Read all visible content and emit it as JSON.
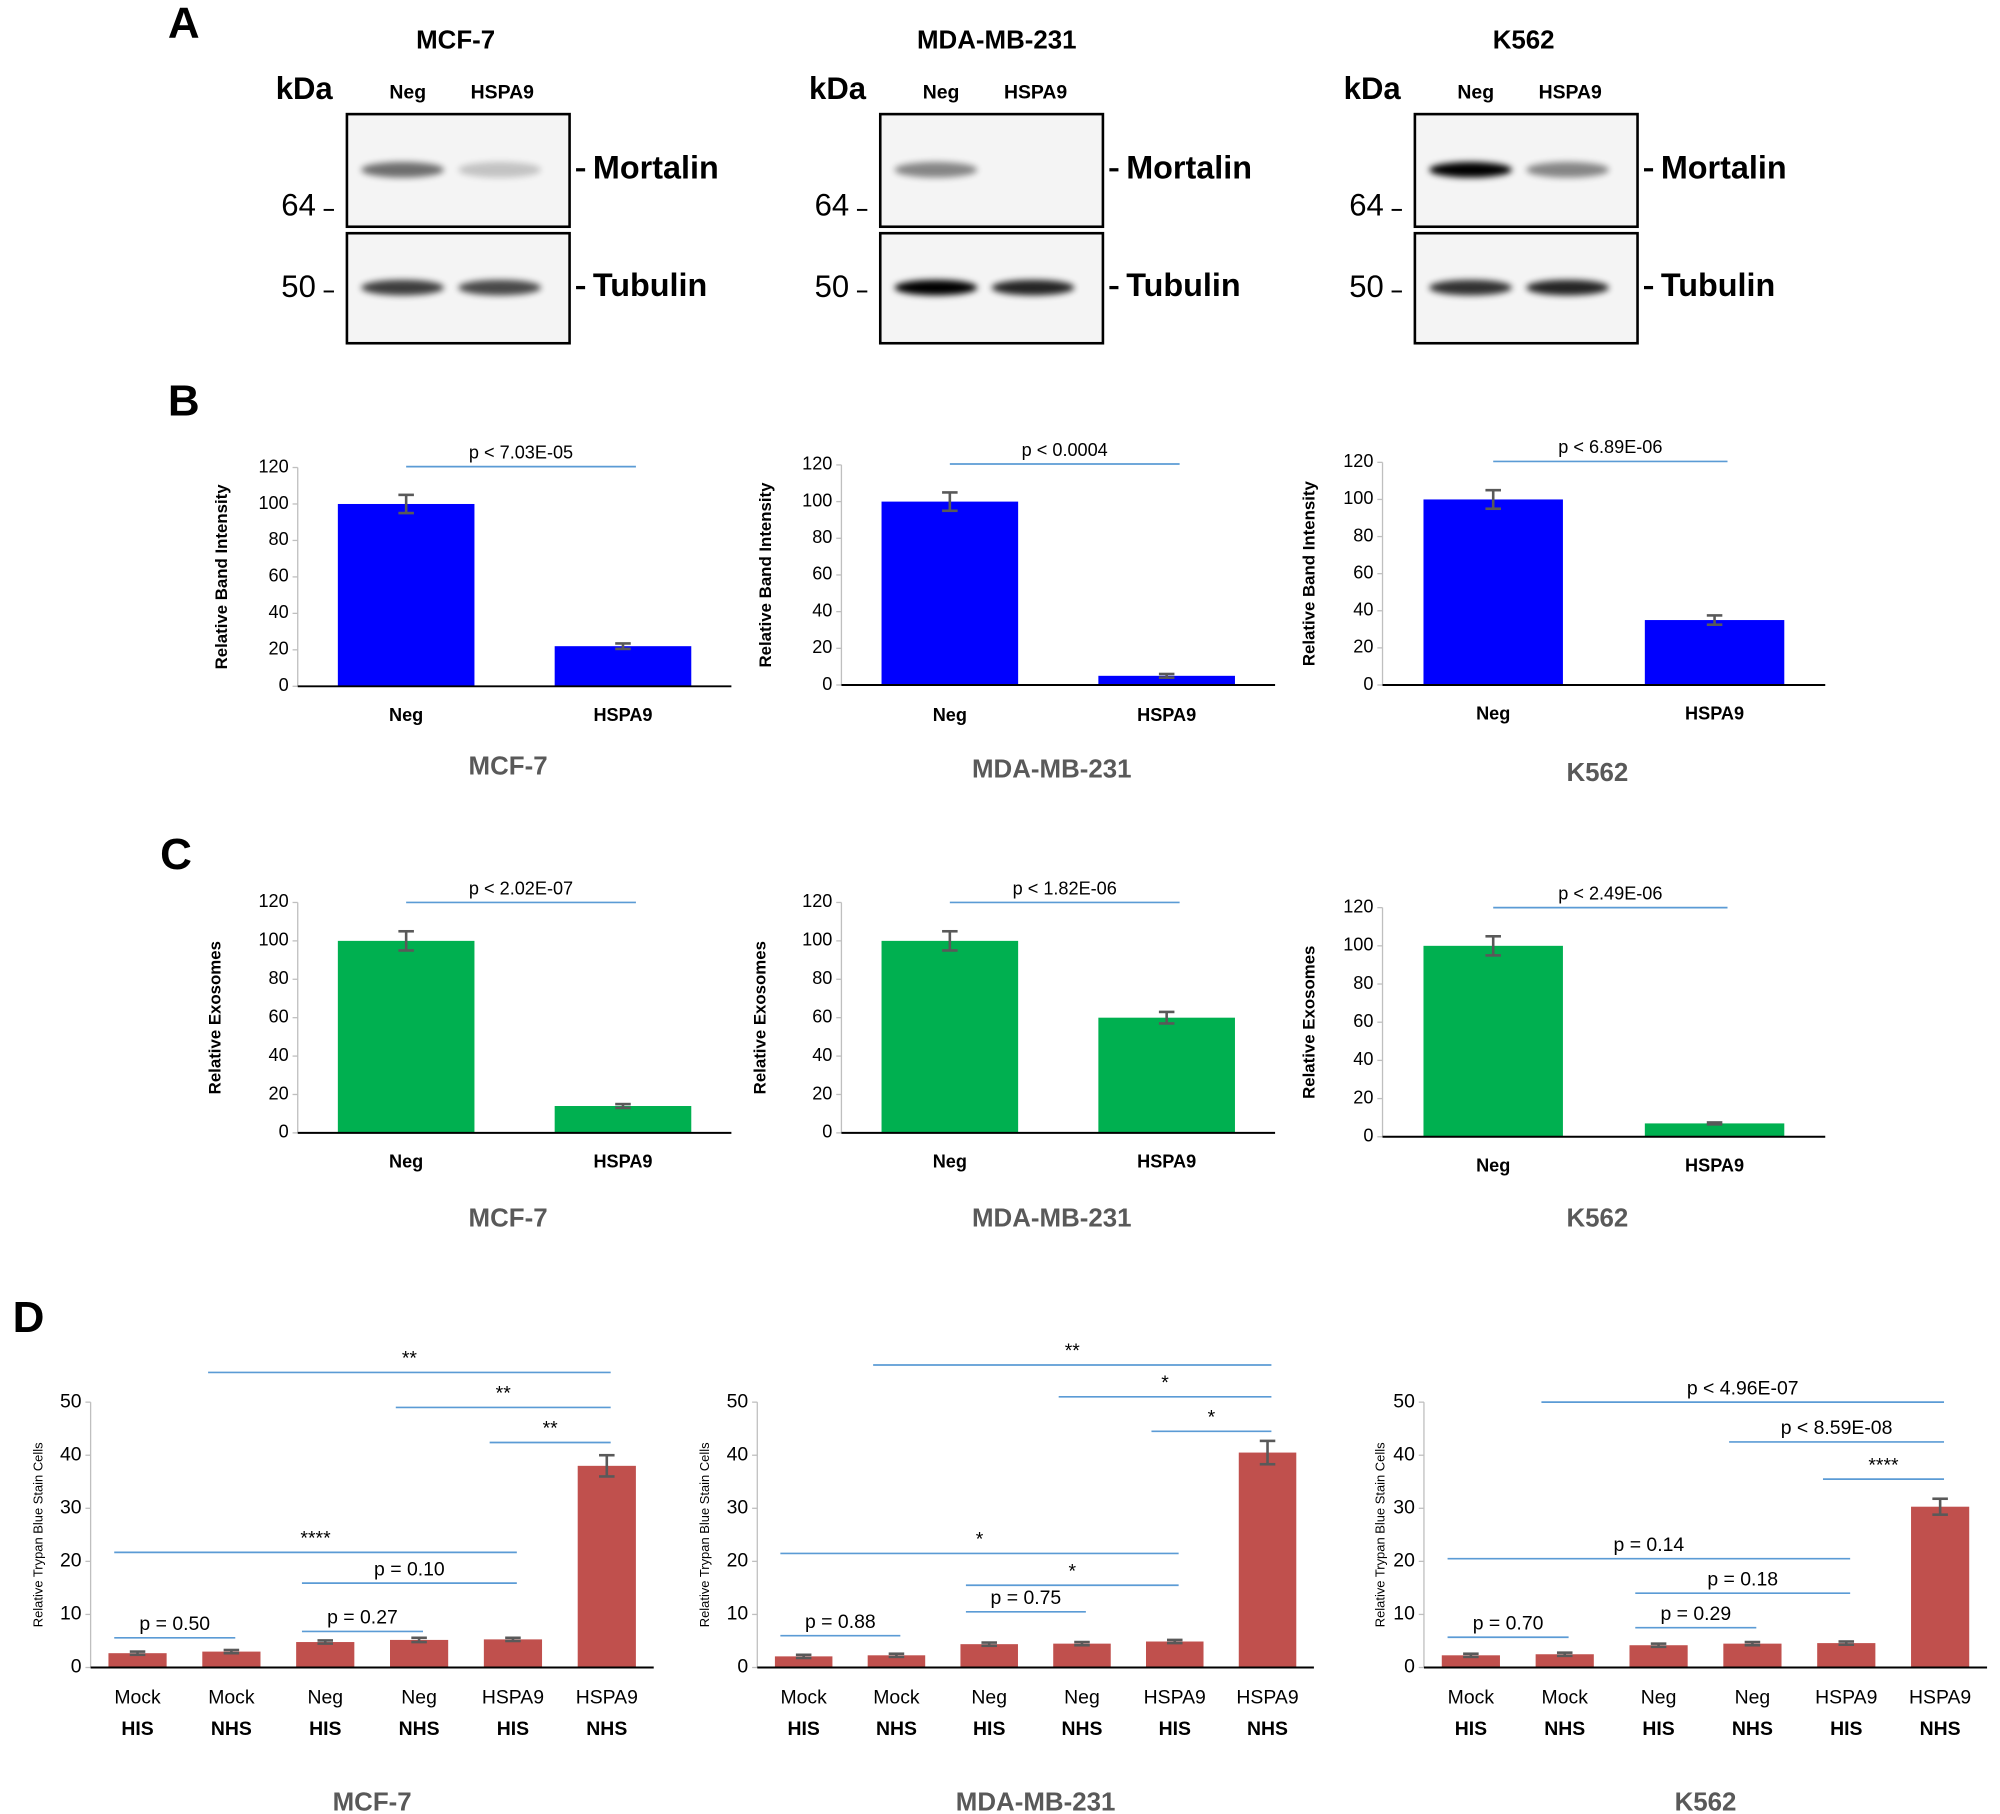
{
  "panel_labels": [
    "A",
    "B",
    "C",
    "D"
  ],
  "blots": [
    {
      "title": "MCF-7",
      "unit": "kDa",
      "lanes": [
        "Neg",
        "HSPA9"
      ],
      "markers": [
        64,
        50
      ],
      "proteins": [
        "Mortalin",
        "Tubulin"
      ]
    },
    {
      "title": "MDA-MB-231",
      "unit": "kDa",
      "lanes": [
        "Neg",
        "HSPA9"
      ],
      "markers": [
        64,
        50
      ],
      "proteins": [
        "Mortalin",
        "Tubulin"
      ]
    },
    {
      "title": "K562",
      "unit": "kDa",
      "lanes": [
        "Neg",
        "HSPA9"
      ],
      "markers": [
        64,
        50
      ],
      "proteins": [
        "Mortalin",
        "Tubulin"
      ]
    }
  ],
  "chart_data": [
    {
      "type": "bar",
      "title": "MCF-7",
      "ylabel": "Relative Band Intensity",
      "categories": [
        "Neg",
        "HSPA9"
      ],
      "values": [
        100,
        22
      ],
      "errors": [
        5,
        1.5
      ],
      "color": "#0000ff",
      "ylim": [
        0,
        120
      ],
      "yticks": [
        0,
        20,
        40,
        60,
        80,
        100,
        120
      ],
      "annotations": [
        "p < 7.03E-05"
      ]
    },
    {
      "type": "bar",
      "title": "MDA-MB-231",
      "ylabel": "Relative Band Intensity",
      "categories": [
        "Neg",
        "HSPA9"
      ],
      "values": [
        100,
        5
      ],
      "errors": [
        5,
        1
      ],
      "color": "#0000ff",
      "ylim": [
        0,
        120
      ],
      "yticks": [
        0,
        20,
        40,
        60,
        80,
        100,
        120
      ],
      "annotations": [
        "p < 0.0004"
      ]
    },
    {
      "type": "bar",
      "title": "K562",
      "ylabel": "Relative Band Intensity",
      "categories": [
        "Neg",
        "HSPA9"
      ],
      "values": [
        100,
        35
      ],
      "errors": [
        5,
        2.5
      ],
      "color": "#0000ff",
      "ylim": [
        0,
        120
      ],
      "yticks": [
        0,
        20,
        40,
        60,
        80,
        100,
        120
      ],
      "annotations": [
        "p < 6.89E-06"
      ]
    },
    {
      "type": "bar",
      "title": "MCF-7",
      "ylabel": "Relative Exosomes",
      "categories": [
        "Neg",
        "HSPA9"
      ],
      "values": [
        100,
        14
      ],
      "errors": [
        5,
        1
      ],
      "color": "#00b050",
      "ylim": [
        0,
        120
      ],
      "yticks": [
        0,
        20,
        40,
        60,
        80,
        100,
        120
      ],
      "annotations": [
        "p < 2.02E-07"
      ]
    },
    {
      "type": "bar",
      "title": "MDA-MB-231",
      "ylabel": "Relative Exosomes",
      "categories": [
        "Neg",
        "HSPA9"
      ],
      "values": [
        100,
        60
      ],
      "errors": [
        5,
        3
      ],
      "color": "#00b050",
      "ylim": [
        0,
        120
      ],
      "yticks": [
        0,
        20,
        40,
        60,
        80,
        100,
        120
      ],
      "annotations": [
        "p < 1.82E-06"
      ]
    },
    {
      "type": "bar",
      "title": "K562",
      "ylabel": "Relative Exosomes",
      "categories": [
        "Neg",
        "HSPA9"
      ],
      "values": [
        100,
        7
      ],
      "errors": [
        5,
        0.5
      ],
      "color": "#00b050",
      "ylim": [
        0,
        120
      ],
      "yticks": [
        0,
        20,
        40,
        60,
        80,
        100,
        120
      ],
      "annotations": [
        "p < 2.49E-06"
      ]
    },
    {
      "type": "bar",
      "title": "MCF-7",
      "ylabel": "Relative  Trypan Blue Stain Cells",
      "categories": [
        [
          "Mock",
          "HIS"
        ],
        [
          "Mock",
          "NHS"
        ],
        [
          "Neg",
          "HIS"
        ],
        [
          "Neg",
          "NHS"
        ],
        [
          "HSPA9",
          "HIS"
        ],
        [
          "HSPA9",
          "NHS"
        ]
      ],
      "values": [
        2.7,
        3.0,
        4.8,
        5.2,
        5.3,
        38
      ],
      "errors": [
        0.3,
        0.3,
        0.3,
        0.4,
        0.3,
        2
      ],
      "color": "#c0504d",
      "ylim": [
        0,
        50
      ],
      "yticks": [
        0,
        10,
        20,
        30,
        40,
        50
      ],
      "annotations": [
        "p = 0.50",
        "p = 0.27",
        "p = 0.10",
        "****",
        "**",
        "**",
        "**"
      ]
    },
    {
      "type": "bar",
      "title": "MDA-MB-231",
      "ylabel": "Relative  Trypan Blue Stain Cells",
      "categories": [
        [
          "Mock",
          "HIS"
        ],
        [
          "Mock",
          "NHS"
        ],
        [
          "Neg",
          "HIS"
        ],
        [
          "Neg",
          "NHS"
        ],
        [
          "HSPA9",
          "HIS"
        ],
        [
          "HSPA9",
          "NHS"
        ]
      ],
      "values": [
        2.1,
        2.3,
        4.4,
        4.5,
        4.9,
        40.5
      ],
      "errors": [
        0.3,
        0.3,
        0.3,
        0.3,
        0.3,
        2.2
      ],
      "color": "#c0504d",
      "ylim": [
        0,
        50
      ],
      "yticks": [
        0,
        10,
        20,
        30,
        40,
        50
      ],
      "annotations": [
        "p = 0.88",
        "p = 0.75",
        "*",
        "*",
        "*",
        "*",
        "**"
      ]
    },
    {
      "type": "bar",
      "title": "K562",
      "ylabel": "Relative  Trypan Blue Stain Cells",
      "categories": [
        [
          "Mock",
          "HIS"
        ],
        [
          "Mock",
          "NHS"
        ],
        [
          "Neg",
          "HIS"
        ],
        [
          "Neg",
          "NHS"
        ],
        [
          "HSPA9",
          "HIS"
        ],
        [
          "HSPA9",
          "NHS"
        ]
      ],
      "values": [
        2.3,
        2.5,
        4.2,
        4.5,
        4.6,
        30.3
      ],
      "errors": [
        0.3,
        0.3,
        0.3,
        0.3,
        0.3,
        1.5
      ],
      "color": "#c0504d",
      "ylim": [
        0,
        50
      ],
      "yticks": [
        0,
        10,
        20,
        30,
        40,
        50
      ],
      "annotations": [
        "p = 0.70",
        "p = 0.29",
        "p = 0.18",
        "p = 0.14",
        "****",
        "p < 8.59E-08",
        "p < 4.96E-07"
      ]
    }
  ]
}
